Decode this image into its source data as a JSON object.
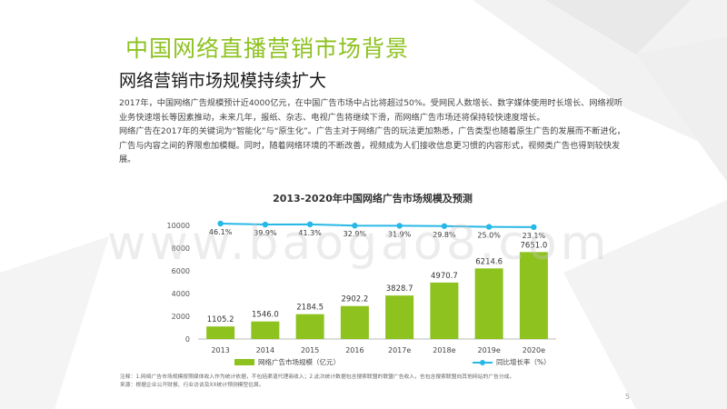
{
  "page": {
    "title": "中国网络直播营销市场背景",
    "subtitle": "网络营销市场规模持续扩大",
    "paragraphs": [
      "2017年，中国网络广告规模预计近4000亿元，在中国广告市场中占比将超过50%。受网民人数增长、数字媒体使用时长增长、网络视听业务快速增长等因素推动，未来几年，报纸、杂志、电视广告将继续下滑，而网络广告市场还将保持较快速度增长。",
      "网络广告在2017年的关键词为“智能化”与“原生化”。广告主对于网络广告的玩法更加熟悉，广告类型也随着原生广告的发展而不断进化，广告与内容之间的界限愈加模糊。同时，随着网络环境的不断改善，视频成为人们接收信息更习惯的内容形式，视频类广告也得到较快发展。"
    ],
    "notes": [
      "注释：1.网络广告市场规模按照媒体收入作为统计依据，不包括渠道代理商收入；2.此次统计数据包含搜索联盟的联盟广告收入，也包含搜索联盟向其他网站的广告分成。",
      "来源：根据企业公开财报、行业访谈及XX统计预测模型估算。"
    ],
    "watermark": "www.baogao8.com",
    "page_number": "5"
  },
  "chart_data": {
    "type": "bar",
    "title": "2013-2020年中国网络广告市场规模及预测",
    "categories": [
      "2013",
      "2014",
      "2015",
      "2016",
      "2017e",
      "2018e",
      "2019e",
      "2020e"
    ],
    "series": [
      {
        "name": "网络广告市场规模（亿元）",
        "type": "bar",
        "color": "#8dc21f",
        "values": [
          1105.2,
          1546.0,
          2184.5,
          2902.2,
          3828.7,
          4970.7,
          6214.6,
          7651.0
        ],
        "labels": [
          "1105.2",
          "1546.0",
          "2184.5",
          "2902.2",
          "3828.7",
          "4970.7",
          "6214.6",
          "7651.0"
        ]
      },
      {
        "name": "同比增长率（%）",
        "type": "line",
        "color": "#28b8e6",
        "values": [
          46.1,
          39.9,
          41.3,
          32.9,
          31.9,
          29.8,
          25.0,
          23.1
        ],
        "labels": [
          "46.1%",
          "39.9%",
          "41.3%",
          "32.9%",
          "31.9%",
          "29.8%",
          "25.0%",
          "23.1%"
        ]
      }
    ],
    "yticks": [
      "0",
      "2000",
      "4000",
      "6000",
      "8000",
      "10000"
    ],
    "ylim": [
      0,
      10000
    ],
    "legend_position": "bottom",
    "grid": false
  }
}
